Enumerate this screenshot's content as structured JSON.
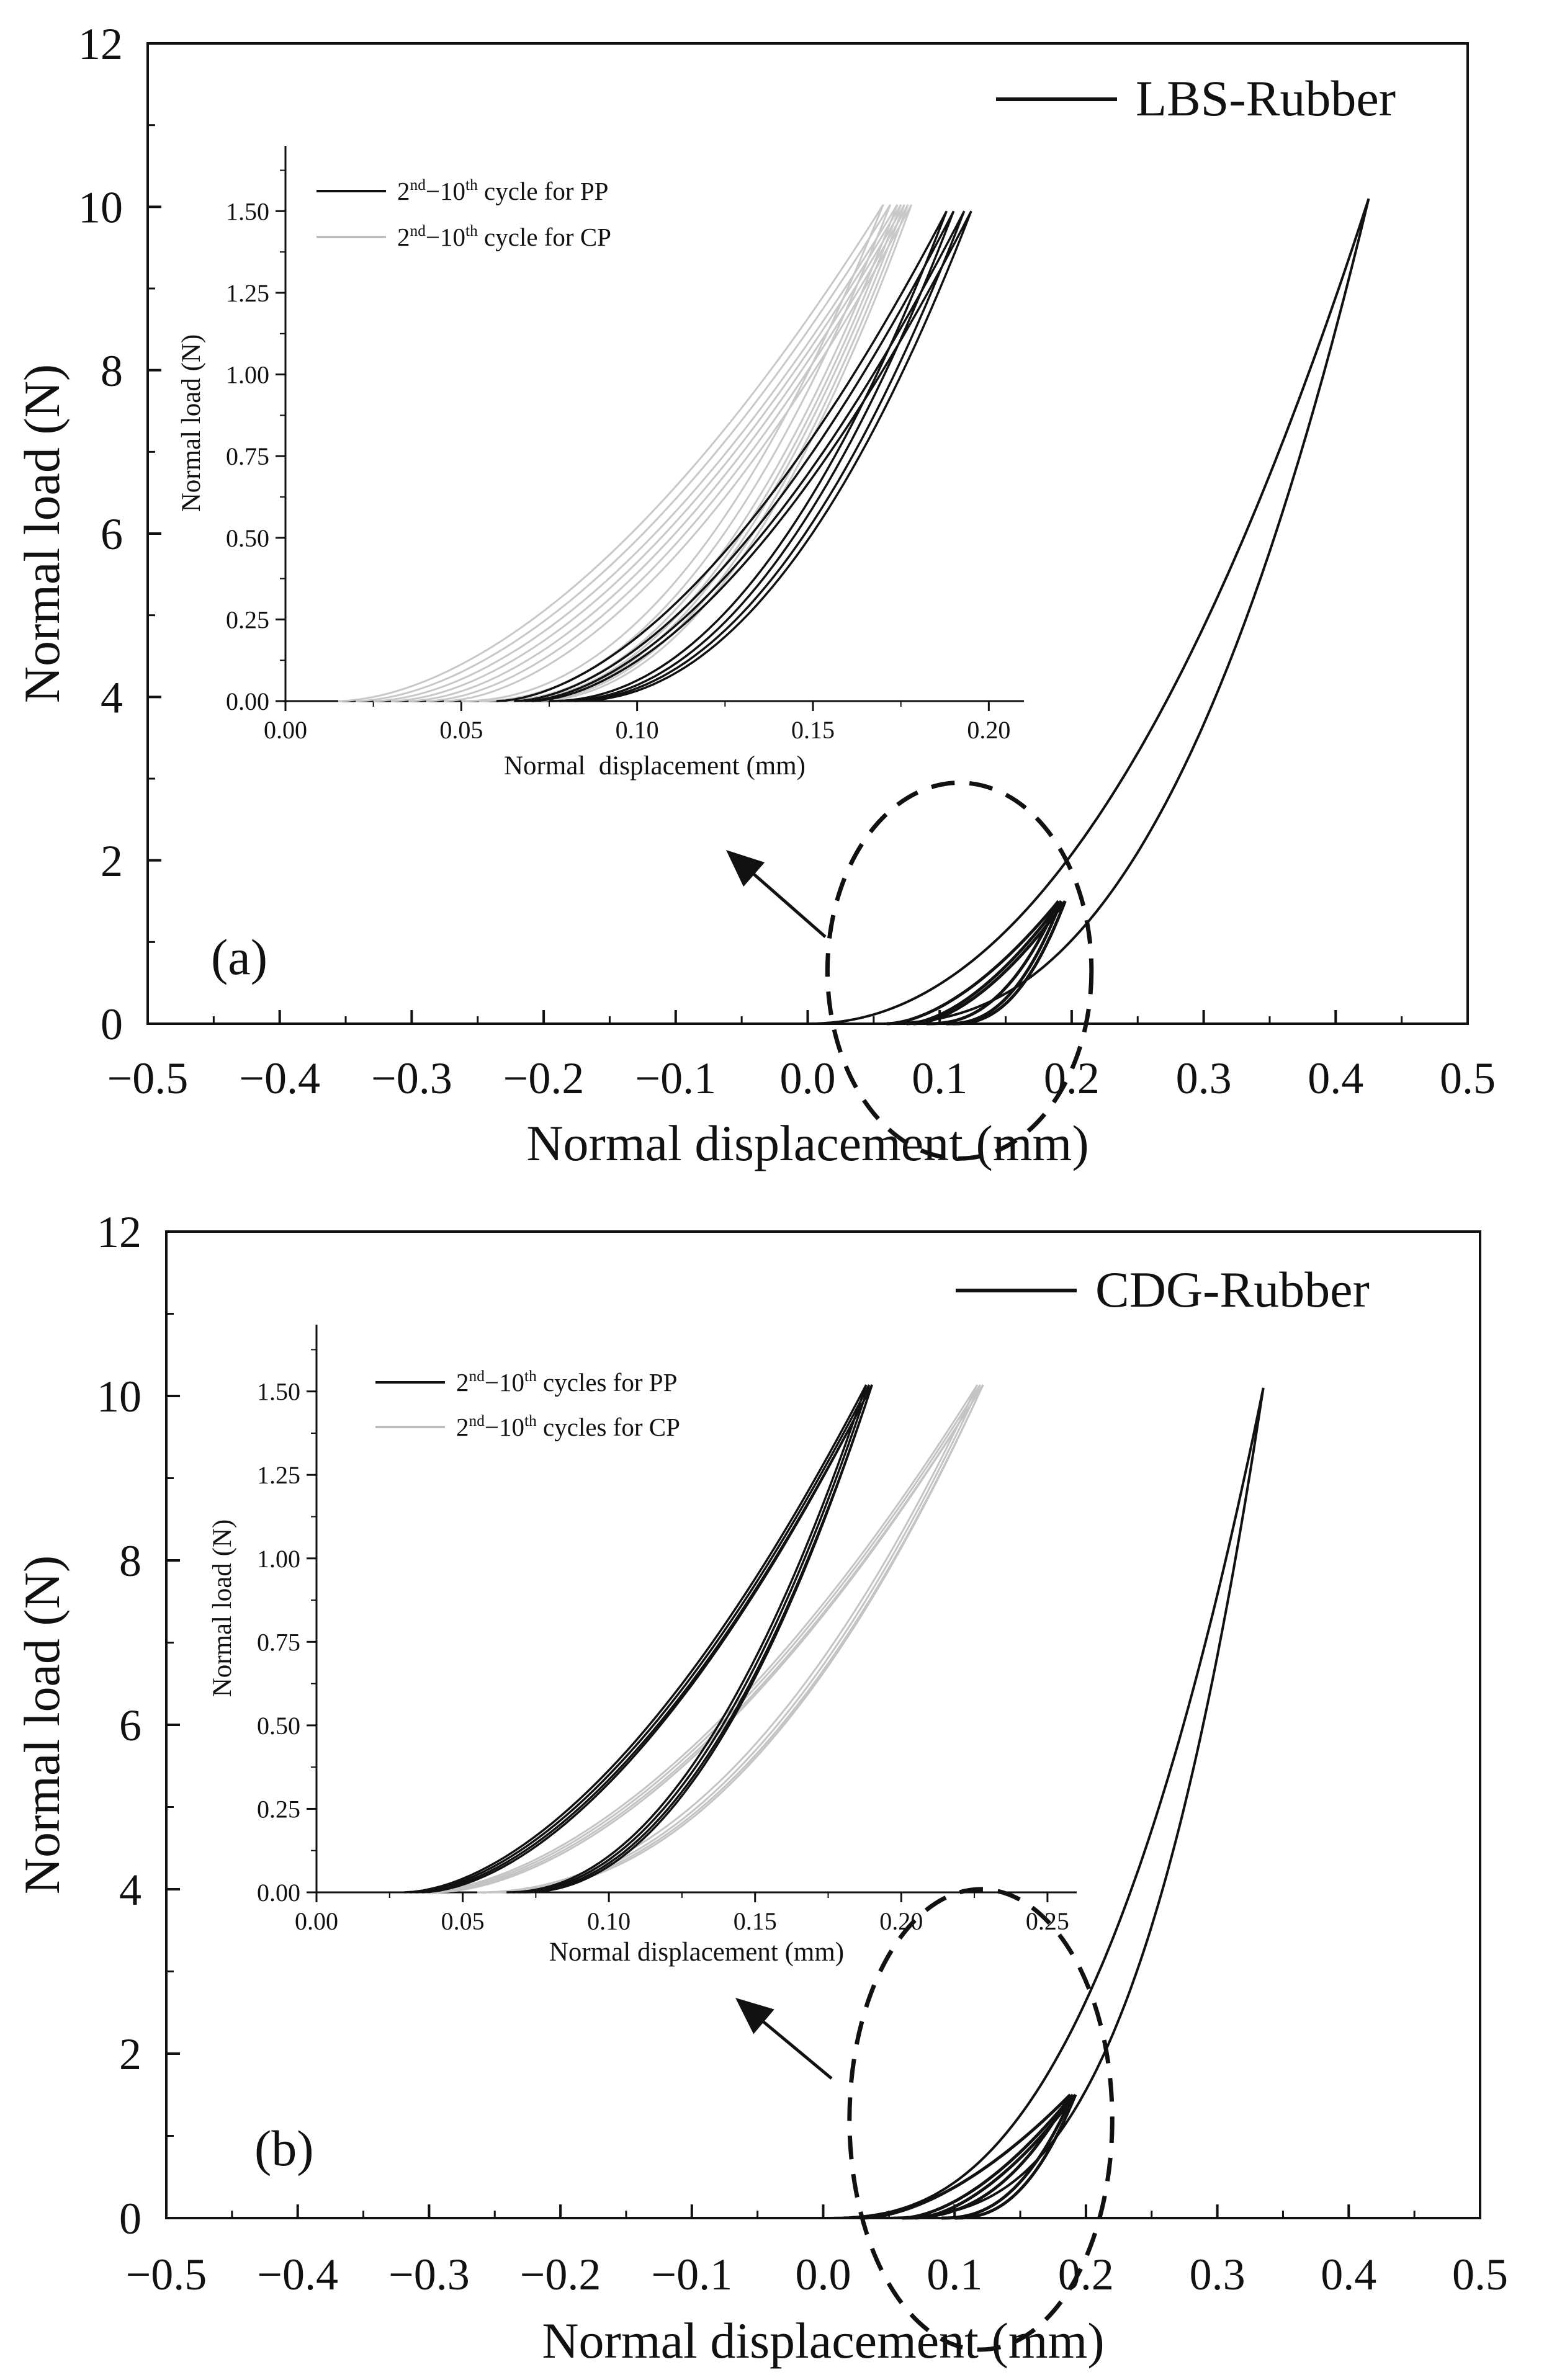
{
  "chart_data": [
    {
      "panel": "(a)",
      "type": "line",
      "xlabel": "Normal displacement (mm)",
      "ylabel": "Normal load (N)",
      "xlim": [
        -0.5,
        0.5
      ],
      "ylim": [
        0,
        12
      ],
      "xticks": [
        "-0.5",
        "-0.4",
        "-0.3",
        "-0.2",
        "-0.1",
        "0.0",
        "0.1",
        "0.2",
        "0.3",
        "0.4",
        "0.5"
      ],
      "yticks": [
        "0",
        "2",
        "4",
        "6",
        "8",
        "10",
        "12"
      ],
      "legend": {
        "position": "top-right",
        "entries": [
          "LBS-Rubber"
        ]
      },
      "series": [
        {
          "name": "LBS-Rubber",
          "loading": {
            "x0": 0.0,
            "x1": 0.425,
            "ymax": 10.1,
            "p": 2.1
          },
          "unloading": {
            "x0": 0.05,
            "x1": 0.425,
            "ymax": 10.1,
            "p": 2.5
          }
        },
        {
          "small_loops": {
            "x0": [
              0.06,
              0.075,
              0.08
            ],
            "x1": [
              0.19,
              0.192,
              0.195
            ],
            "ymax": 1.5
          }
        }
      ],
      "zoom_circle": {
        "cx": 0.115,
        "cy": 0.65,
        "rx": 0.1,
        "ry": 2.3
      },
      "inset": {
        "xlabel": "Normal  displacement (mm)",
        "ylabel": "Normal load (N)",
        "xlim": [
          0,
          0.21
        ],
        "ylim": [
          0,
          1.7
        ],
        "xticks": [
          "0.00",
          "0.05",
          "0.10",
          "0.15",
          "0.20"
        ],
        "yticks": [
          "0.00",
          "0.25",
          "0.50",
          "0.75",
          "1.00",
          "1.25",
          "1.50"
        ],
        "legend": [
          {
            "prefix": "2",
            "sup1": "nd",
            "mid": "−10",
            "sup2": "th",
            "suffix": " cycle for PP",
            "color": "#111111"
          },
          {
            "prefix": "2",
            "sup1": "nd",
            "mid": "−10",
            "sup2": "th",
            "suffix": " cycle for CP",
            "color": "#bdbdbd"
          }
        ],
        "series": [
          {
            "name": "2nd−10th cycle for PP",
            "color": "#111111",
            "cycles": [
              {
                "xl": 0.06,
                "xu": 0.075,
                "xm": 0.188
              },
              {
                "xl": 0.065,
                "xu": 0.078,
                "xm": 0.19
              },
              {
                "xl": 0.068,
                "xu": 0.08,
                "xm": 0.193
              },
              {
                "xl": 0.07,
                "xu": 0.082,
                "xm": 0.195
              }
            ],
            "ymax": 1.5
          },
          {
            "name": "2nd−10th cycle for CP",
            "color": "#c8c8c8",
            "cycles": [
              {
                "xl": 0.015,
                "xu": 0.05,
                "xm": 0.17
              },
              {
                "xl": 0.02,
                "xu": 0.055,
                "xm": 0.172
              },
              {
                "xl": 0.025,
                "xu": 0.06,
                "xm": 0.174
              },
              {
                "xl": 0.03,
                "xu": 0.063,
                "xm": 0.175
              },
              {
                "xl": 0.035,
                "xu": 0.065,
                "xm": 0.176
              },
              {
                "xl": 0.04,
                "xu": 0.068,
                "xm": 0.177
              },
              {
                "xl": 0.045,
                "xu": 0.07,
                "xm": 0.178
              }
            ],
            "ymax": 1.52
          }
        ]
      }
    },
    {
      "panel": "(b)",
      "type": "line",
      "xlabel": "Normal displacement (mm)",
      "ylabel": "Normal load (N)",
      "xlim": [
        -0.5,
        0.5
      ],
      "ylim": [
        0,
        12
      ],
      "xticks": [
        "-0.5",
        "-0.4",
        "-0.3",
        "-0.2",
        "-0.1",
        "0.0",
        "0.1",
        "0.2",
        "0.3",
        "0.4",
        "0.5"
      ],
      "yticks": [
        "0",
        "2",
        "4",
        "6",
        "8",
        "10",
        "12"
      ],
      "legend": {
        "position": "top-right",
        "entries": [
          "CDG-Rubber"
        ]
      },
      "series": [
        {
          "name": "CDG-Rubber",
          "loading": {
            "x0": 0.0,
            "x1": 0.335,
            "ymax": 10.1,
            "p": 2.6
          },
          "unloading": {
            "x0": 0.03,
            "x1": 0.335,
            "ymax": 10.1,
            "p": 3.2
          }
        },
        {
          "small_loops": {
            "x0": [
              0.03,
              0.06,
              0.07
            ],
            "x1": [
              0.188,
              0.19,
              0.192
            ],
            "ymax": 1.5
          }
        }
      ],
      "zoom_circle": {
        "cx": 0.12,
        "cy": 1.2,
        "rx": 0.1,
        "ry": 2.8
      },
      "inset": {
        "xlabel": "Normal displacement (mm)",
        "ylabel": "Normal load (N)",
        "xlim": [
          0,
          0.26
        ],
        "ylim": [
          0,
          1.7
        ],
        "xticks": [
          "0.00",
          "0.05",
          "0.10",
          "0.15",
          "0.20",
          "0.25"
        ],
        "yticks": [
          "0.00",
          "0.25",
          "0.50",
          "0.75",
          "1.00",
          "1.25",
          "1.50"
        ],
        "legend": [
          {
            "prefix": "2",
            "sup1": "nd",
            "mid": "−10",
            "sup2": "th",
            "suffix": " cycles for PP",
            "color": "#111111"
          },
          {
            "prefix": "2",
            "sup1": "nd",
            "mid": "−10",
            "sup2": "th",
            "suffix": " cycles for CP",
            "color": "#bdbdbd"
          }
        ],
        "series": [
          {
            "name": "2nd−10th cycles for PP",
            "color": "#111111",
            "cycles": [
              {
                "xl": 0.03,
                "xu": 0.065,
                "xm": 0.188
              },
              {
                "xl": 0.032,
                "xu": 0.067,
                "xm": 0.189
              },
              {
                "xl": 0.034,
                "xu": 0.069,
                "xm": 0.19
              },
              {
                "xl": 0.036,
                "xu": 0.071,
                "xm": 0.19
              }
            ],
            "ymax": 1.52
          },
          {
            "name": "2nd−10th cycles for CP",
            "color": "#c4c4c4",
            "cycles": [
              {
                "xl": 0.035,
                "xu": 0.055,
                "xm": 0.226
              },
              {
                "xl": 0.037,
                "xu": 0.058,
                "xm": 0.227
              },
              {
                "xl": 0.039,
                "xu": 0.06,
                "xm": 0.228
              },
              {
                "xl": 0.041,
                "xu": 0.062,
                "xm": 0.228
              }
            ],
            "ymax": 1.52
          }
        ]
      }
    }
  ]
}
